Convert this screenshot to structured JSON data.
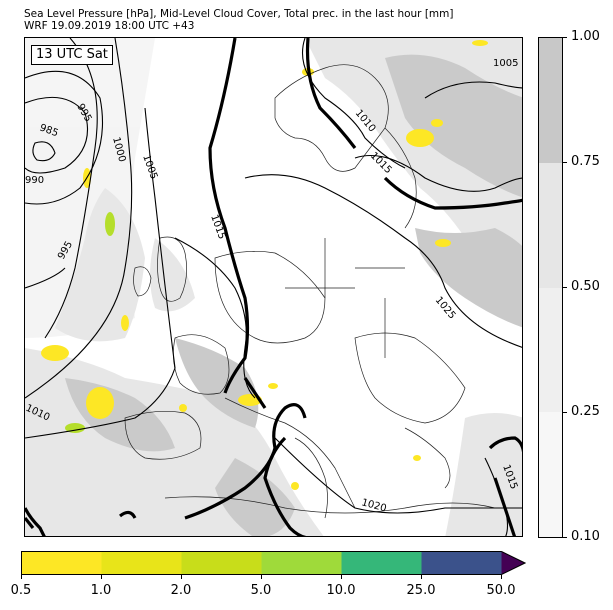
{
  "title": {
    "line1": "Sea Level Pressure [hPa], Mid-Level Cloud Cover, Total prec. in the last hour [mm]",
    "line2": "WRF 19.09.2019 18:00 UTC +43"
  },
  "map": {
    "time_label": "13 UTC Sat",
    "isobar_labels": [
      "1005",
      "1010",
      "1015",
      "1000",
      "1005",
      "985",
      "995",
      "990",
      "995",
      "1015",
      "1025",
      "1010",
      "1020",
      "1015"
    ],
    "colors": {
      "cloud_light": "#f4f4f4",
      "cloud_mid": "#e6e6e6",
      "cloud_dark": "#c8c8c8",
      "precip_low": "#fde725",
      "precip_mid": "#b5de2b",
      "frame": "#000000"
    }
  },
  "cloud_colorbar": {
    "ticks": [
      "1.00",
      "0.75",
      "0.50",
      "0.25",
      "0.10"
    ],
    "colors": [
      "#c8c8c8",
      "#e6e6e6",
      "#efefef",
      "#f7f7f7"
    ]
  },
  "precip_colorbar": {
    "ticks": [
      "0.5",
      "1.0",
      "2.0",
      "5.0",
      "10.0",
      "25.0",
      "50.0"
    ],
    "colors": [
      "#fde725",
      "#e8e419",
      "#c8dd1a",
      "#9fda3a",
      "#35b779",
      "#3b528b",
      "#440154"
    ]
  }
}
